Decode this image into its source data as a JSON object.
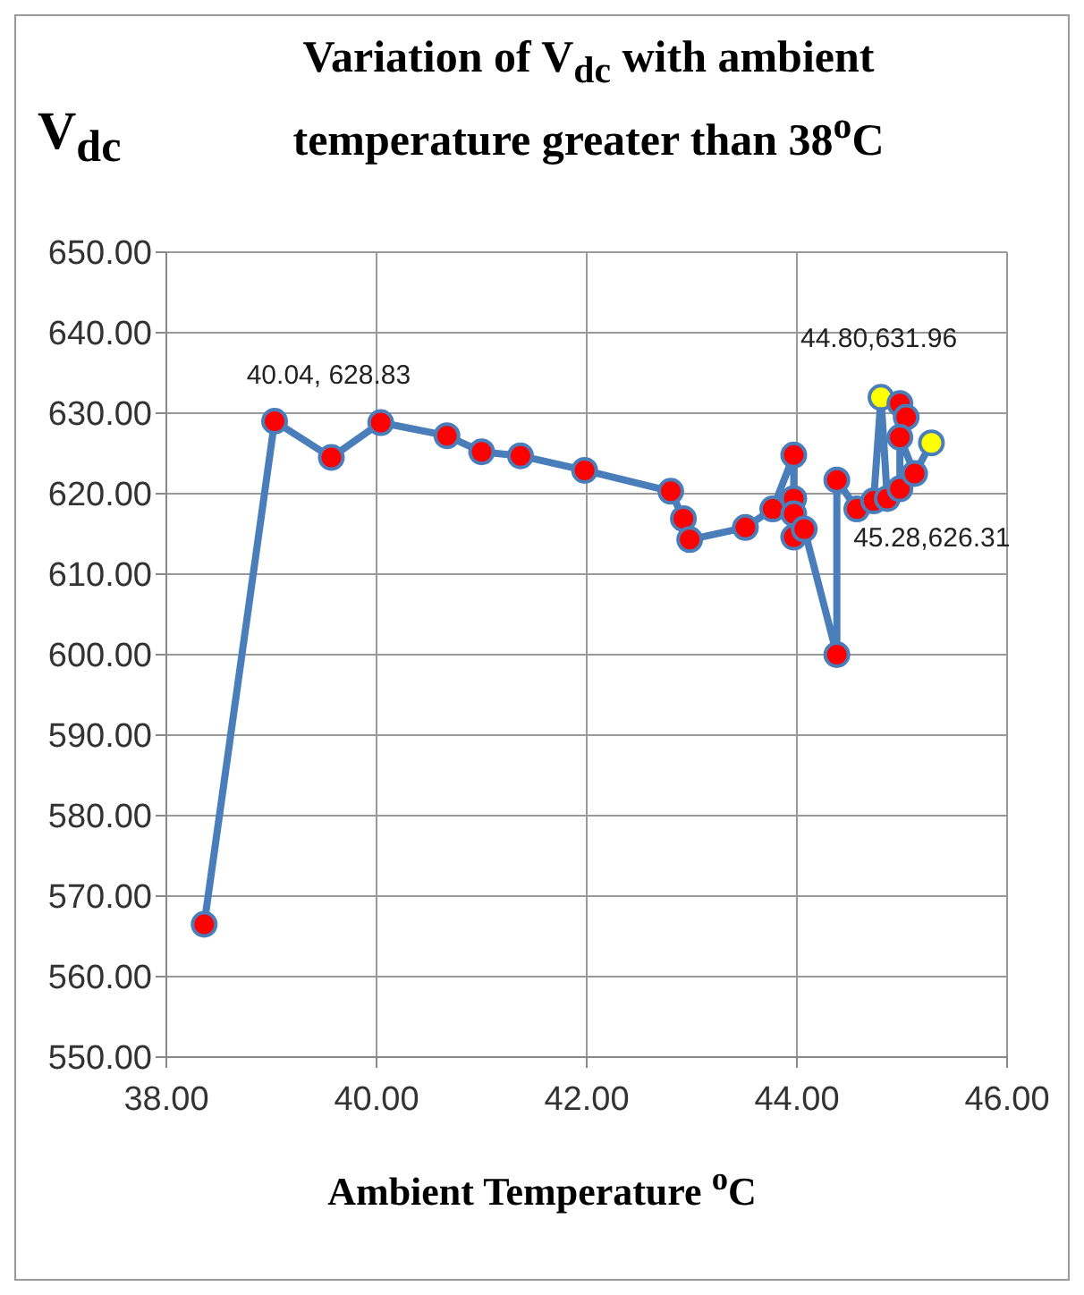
{
  "chart_data": {
    "type": "line",
    "title": "Variation of V$_{dc}$ with ambient temperature greater than 38$^{o}$C",
    "xlabel": "Ambient Temperature $^{o}$C",
    "ylabel": "V$_{dc}$",
    "xlim": [
      38,
      46
    ],
    "xticks": [
      {
        "value": 38,
        "label": "38.00"
      },
      {
        "value": 40,
        "label": "40.00"
      },
      {
        "value": 42,
        "label": "42.00"
      },
      {
        "value": 44,
        "label": "44.00"
      },
      {
        "value": 46,
        "label": "46.00"
      }
    ],
    "ylim": [
      550,
      650
    ],
    "yticks": [
      {
        "value": 550,
        "label": "550.00"
      },
      {
        "value": 560,
        "label": "560.00"
      },
      {
        "value": 570,
        "label": "570.00"
      },
      {
        "value": 580,
        "label": "580.00"
      },
      {
        "value": 590,
        "label": "590.00"
      },
      {
        "value": 600,
        "label": "600.00"
      },
      {
        "value": 610,
        "label": "610.00"
      },
      {
        "value": 620,
        "label": "620.00"
      },
      {
        "value": 630,
        "label": "630.00"
      },
      {
        "value": 640,
        "label": "640.00"
      },
      {
        "value": 650,
        "label": "650.00"
      }
    ],
    "grid": true,
    "marker": "circle",
    "line_style": "solid",
    "series": [
      {
        "color": "#4a7ebb",
        "x": [
          38.36,
          39.03,
          39.57,
          40.04,
          40.67,
          41.0,
          41.37,
          41.98,
          42.8,
          42.92,
          42.98,
          43.51,
          43.77,
          43.97,
          43.97,
          43.97,
          43.97,
          44.07,
          44.38,
          44.38,
          44.57,
          44.73,
          44.8,
          44.86,
          44.98,
          44.98,
          45.04,
          44.98,
          45.12,
          45.28
        ],
        "values": [
          566.5,
          629,
          624.5,
          628.83,
          627.2,
          625.2,
          624.7,
          622.9,
          620.3,
          616.9,
          614.3,
          615.8,
          618.1,
          624.8,
          619.4,
          617.5,
          614.6,
          615.6,
          600,
          621.7,
          618.1,
          619.1,
          631.96,
          619.4,
          620.6,
          631.2,
          629.5,
          627,
          622.5,
          626.31
        ],
        "colors": [
          "#ff0000",
          "#ff0000",
          "#ff0000",
          "#ff0000",
          "#ff0000",
          "#ff0000",
          "#ff0000",
          "#ff0000",
          "#ff0000",
          "#ff0000",
          "#ff0000",
          "#ff0000",
          "#ff0000",
          "#ff0000",
          "#ff0000",
          "#ff0000",
          "#ff0000",
          "#ff0000",
          "#ff0000",
          "#ff0000",
          "#ff0000",
          "#ff0000",
          "#ffff00",
          "#ff0000",
          "#ff0000",
          "#ff0000",
          "#ff0000",
          "#ff0000",
          "#ff0000",
          "#ffff00"
        ]
      }
    ],
    "annotations": [
      {
        "text": "40.04, 628.83",
        "x": 40.04,
        "y": 628.83
      },
      {
        "text": "44.80,631.96",
        "x": 44.8,
        "y": 631.96
      },
      {
        "text": "45.28,626.31",
        "x": 45.28,
        "y": 626.31
      }
    ]
  }
}
